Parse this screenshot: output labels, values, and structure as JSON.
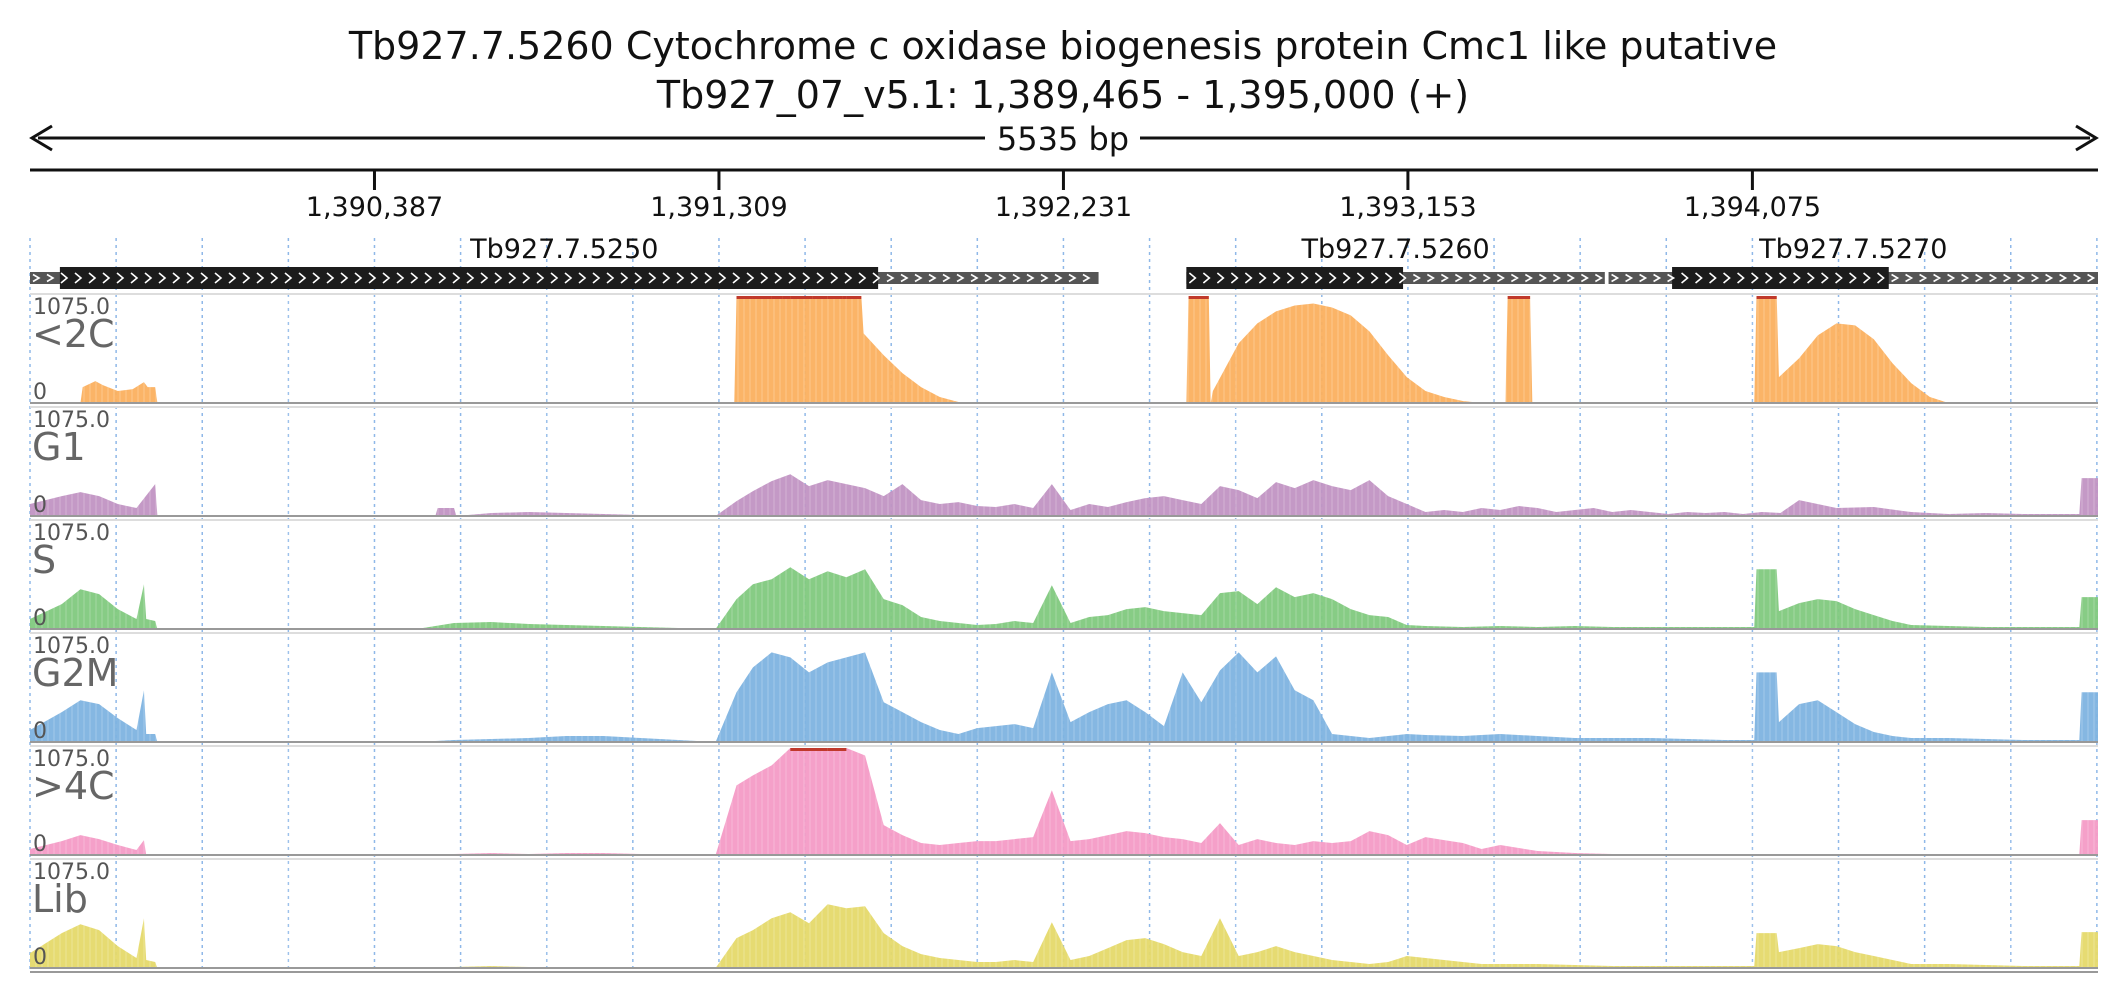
{
  "title": "Tb927.7.5260  Cytochrome c oxidase biogenesis protein Cmc1 like  putative",
  "subtitle": "Tb927_07_v5.1: 1,389,465 - 1,395,000 (+)",
  "span_label": "5535 bp",
  "chart_data": {
    "type": "area",
    "region": {
      "chromosome": "Tb927_07_v5.1",
      "start": 1389465,
      "end": 1395000,
      "strand": "+"
    },
    "ticks": [
      {
        "pos": 1390387,
        "label": "1,390,387"
      },
      {
        "pos": 1391309,
        "label": "1,391,309"
      },
      {
        "pos": 1392231,
        "label": "1,392,231"
      },
      {
        "pos": 1393153,
        "label": "1,393,153"
      },
      {
        "pos": 1394075,
        "label": "1,394,075"
      }
    ],
    "genes": [
      {
        "name": "Tb927.7.5250",
        "start": 1389465,
        "end": 1392325,
        "cds_start": 1389545,
        "cds_end": 1391735
      },
      {
        "name": "Tb927.7.5260",
        "start": 1392560,
        "end": 1393680,
        "cds_start": 1392560,
        "cds_end": 1393140
      },
      {
        "name": "Tb927.7.5270",
        "start": 1393690,
        "end": 1395000,
        "cds_start": 1393860,
        "cds_end": 1394440
      }
    ],
    "max_value": "1075.0",
    "min_value": "0",
    "ylim": [
      0,
      1075
    ],
    "grid": true,
    "series": [
      {
        "name": "<2C",
        "color": "#fbb05f",
        "x": [
          1389465,
          1389600,
          1389606,
          1389640,
          1389660,
          1389700,
          1389740,
          1389770,
          1389780,
          1389800,
          1389806,
          1391350,
          1391356,
          1391400,
          1391450,
          1391480,
          1391500,
          1391560,
          1391600,
          1391640,
          1391650,
          1391690,
          1391696,
          1391750,
          1391800,
          1391850,
          1391900,
          1391950,
          1392000,
          1392050,
          1392100,
          1392150,
          1392200,
          1392250,
          1392300,
          1392350,
          1392400,
          1392450,
          1392500,
          1392550,
          1392560,
          1392566,
          1392620,
          1392625,
          1392631,
          1392700,
          1392750,
          1392800,
          1392850,
          1392900,
          1392950,
          1393000,
          1393050,
          1393100,
          1393150,
          1393200,
          1393250,
          1393300,
          1393350,
          1393400,
          1393414,
          1393420,
          1393480,
          1393486,
          1393840,
          1394080,
          1394086,
          1394140,
          1394146,
          1394200,
          1394250,
          1394300,
          1394350,
          1394400,
          1394450,
          1394500,
          1394550,
          1394600,
          1394650,
          1394700,
          1394750,
          1394800,
          1394850,
          1394900,
          1394950,
          1395000
        ],
        "values": [
          0,
          0,
          160,
          220,
          180,
          120,
          140,
          210,
          160,
          160,
          0,
          0,
          1075,
          1075,
          1075,
          1075,
          1075,
          1075,
          1075,
          1075,
          1075,
          1075,
          700,
          480,
          300,
          160,
          60,
          10,
          0,
          0,
          0,
          0,
          0,
          0,
          0,
          0,
          0,
          0,
          0,
          0,
          0,
          1075,
          1075,
          0,
          120,
          600,
          800,
          920,
          980,
          1000,
          960,
          880,
          720,
          480,
          260,
          120,
          60,
          20,
          0,
          0,
          0,
          1075,
          1075,
          0,
          0,
          0,
          1075,
          1075,
          260,
          450,
          680,
          800,
          780,
          640,
          400,
          200,
          60,
          0,
          0,
          0,
          0,
          0,
          0,
          0,
          0,
          0
        ]
      },
      {
        "name": "G1",
        "color": "#c194c3",
        "x": [
          1389465,
          1389550,
          1389600,
          1389650,
          1389700,
          1389750,
          1389800,
          1389806,
          1390550,
          1390556,
          1390600,
          1390606,
          1390700,
          1390800,
          1390900,
          1391000,
          1391100,
          1391200,
          1391300,
          1391356,
          1391400,
          1391450,
          1391500,
          1391550,
          1391600,
          1391650,
          1391700,
          1391750,
          1391800,
          1391850,
          1391900,
          1391950,
          1392000,
          1392050,
          1392100,
          1392150,
          1392200,
          1392250,
          1392300,
          1392350,
          1392400,
          1392450,
          1392500,
          1392550,
          1392600,
          1392650,
          1392700,
          1392750,
          1392800,
          1392850,
          1392900,
          1392950,
          1393000,
          1393050,
          1393100,
          1393150,
          1393200,
          1393250,
          1393300,
          1393350,
          1393400,
          1393450,
          1393500,
          1393550,
          1393600,
          1393650,
          1393700,
          1393750,
          1393800,
          1393850,
          1393900,
          1393950,
          1394000,
          1394050,
          1394100,
          1394150,
          1394200,
          1394300,
          1394400,
          1394500,
          1394600,
          1394700,
          1394800,
          1394900,
          1394950,
          1394956,
          1395000
        ],
        "values": [
          120,
          200,
          240,
          200,
          120,
          80,
          320,
          0,
          0,
          80,
          80,
          0,
          30,
          40,
          30,
          20,
          10,
          10,
          0,
          150,
          250,
          350,
          420,
          300,
          360,
          320,
          280,
          200,
          320,
          160,
          120,
          140,
          100,
          90,
          120,
          80,
          320,
          60,
          120,
          90,
          140,
          180,
          200,
          160,
          120,
          300,
          260,
          180,
          340,
          280,
          360,
          300,
          260,
          360,
          200,
          120,
          40,
          60,
          40,
          80,
          60,
          100,
          80,
          40,
          60,
          80,
          40,
          60,
          40,
          20,
          40,
          30,
          40,
          20,
          40,
          30,
          160,
          80,
          90,
          40,
          20,
          30,
          20,
          20,
          20,
          380,
          380
        ]
      },
      {
        "name": "S",
        "color": "#81c97e",
        "x": [
          1389465,
          1389550,
          1389600,
          1389650,
          1389700,
          1389750,
          1389770,
          1389776,
          1389800,
          1389806,
          1390500,
          1390600,
          1390700,
          1390800,
          1390900,
          1391000,
          1391100,
          1391200,
          1391300,
          1391356,
          1391400,
          1391450,
          1391500,
          1391550,
          1391600,
          1391650,
          1391700,
          1391750,
          1391800,
          1391850,
          1391900,
          1391950,
          1392000,
          1392050,
          1392100,
          1392150,
          1392200,
          1392250,
          1392300,
          1392350,
          1392400,
          1392450,
          1392500,
          1392550,
          1392600,
          1392650,
          1392700,
          1392750,
          1392800,
          1392850,
          1392900,
          1392950,
          1393000,
          1393050,
          1393100,
          1393150,
          1393200,
          1393300,
          1393400,
          1393500,
          1393600,
          1393700,
          1393800,
          1393900,
          1394000,
          1394080,
          1394086,
          1394140,
          1394146,
          1394200,
          1394250,
          1394300,
          1394350,
          1394400,
          1394450,
          1394500,
          1394600,
          1394700,
          1394800,
          1394900,
          1394950,
          1394956,
          1395000
        ],
        "values": [
          100,
          250,
          400,
          350,
          200,
          100,
          450,
          100,
          80,
          0,
          0,
          60,
          70,
          50,
          40,
          30,
          20,
          10,
          0,
          300,
          450,
          500,
          620,
          500,
          580,
          520,
          600,
          300,
          240,
          120,
          80,
          60,
          40,
          50,
          80,
          60,
          440,
          60,
          120,
          140,
          200,
          220,
          180,
          160,
          140,
          360,
          380,
          250,
          420,
          320,
          360,
          300,
          200,
          140,
          120,
          40,
          30,
          20,
          30,
          20,
          30,
          20,
          20,
          20,
          20,
          20,
          600,
          600,
          180,
          260,
          300,
          280,
          200,
          140,
          80,
          40,
          30,
          20,
          20,
          20,
          20,
          320,
          320
        ]
      },
      {
        "name": "G2M",
        "color": "#7eb3e0",
        "x": [
          1389465,
          1389550,
          1389600,
          1389650,
          1389700,
          1389750,
          1389770,
          1389776,
          1389800,
          1389806,
          1390500,
          1390600,
          1390700,
          1390800,
          1390900,
          1391000,
          1391100,
          1391200,
          1391300,
          1391356,
          1391400,
          1391450,
          1391500,
          1391550,
          1391600,
          1391650,
          1391700,
          1391750,
          1391800,
          1391850,
          1391900,
          1391950,
          1392000,
          1392050,
          1392100,
          1392150,
          1392200,
          1392250,
          1392300,
          1392350,
          1392400,
          1392450,
          1392500,
          1392550,
          1392600,
          1392650,
          1392700,
          1392750,
          1392800,
          1392850,
          1392900,
          1392950,
          1393000,
          1393050,
          1393100,
          1393150,
          1393200,
          1393300,
          1393400,
          1393500,
          1393600,
          1393700,
          1393800,
          1393900,
          1394000,
          1394080,
          1394086,
          1394140,
          1394146,
          1394200,
          1394250,
          1394300,
          1394350,
          1394400,
          1394450,
          1394500,
          1394600,
          1394700,
          1394800,
          1394900,
          1394950,
          1394956,
          1395000
        ],
        "values": [
          120,
          300,
          420,
          380,
          240,
          120,
          520,
          80,
          80,
          0,
          0,
          20,
          30,
          40,
          60,
          60,
          40,
          20,
          0,
          500,
          750,
          900,
          850,
          700,
          800,
          850,
          900,
          400,
          300,
          200,
          120,
          80,
          140,
          160,
          180,
          140,
          700,
          200,
          300,
          380,
          420,
          300,
          160,
          700,
          400,
          720,
          900,
          700,
          860,
          520,
          420,
          80,
          60,
          40,
          60,
          80,
          70,
          60,
          80,
          60,
          40,
          40,
          40,
          30,
          20,
          20,
          700,
          700,
          200,
          380,
          420,
          300,
          180,
          100,
          60,
          40,
          40,
          30,
          20,
          20,
          20,
          500,
          500
        ]
      },
      {
        "name": ">4C",
        "color": "#f49bc6",
        "x": [
          1389465,
          1389550,
          1389600,
          1389650,
          1389700,
          1389750,
          1389770,
          1389776,
          1389800,
          1389806,
          1390500,
          1390600,
          1390700,
          1390800,
          1390900,
          1391000,
          1391100,
          1391200,
          1391300,
          1391356,
          1391400,
          1391450,
          1391500,
          1391550,
          1391600,
          1391650,
          1391700,
          1391750,
          1391800,
          1391850,
          1391900,
          1391950,
          1392000,
          1392050,
          1392100,
          1392150,
          1392200,
          1392250,
          1392300,
          1392350,
          1392400,
          1392450,
          1392500,
          1392550,
          1392600,
          1392650,
          1392700,
          1392750,
          1392800,
          1392850,
          1392900,
          1392950,
          1393000,
          1393050,
          1393100,
          1393150,
          1393200,
          1393250,
          1393300,
          1393350,
          1393400,
          1393500,
          1393600,
          1393700,
          1393800,
          1393900,
          1394000,
          1394100,
          1394200,
          1394300,
          1394400,
          1394500,
          1394600,
          1394700,
          1394800,
          1394900,
          1394950,
          1394956,
          1395000
        ],
        "values": [
          60,
          140,
          200,
          160,
          100,
          50,
          150,
          0,
          0,
          0,
          0,
          10,
          20,
          10,
          20,
          20,
          10,
          0,
          0,
          700,
          800,
          900,
          1075,
          1075,
          1075,
          1075,
          1000,
          300,
          200,
          120,
          100,
          120,
          140,
          140,
          160,
          180,
          650,
          140,
          160,
          200,
          240,
          220,
          180,
          160,
          120,
          320,
          100,
          160,
          120,
          100,
          140,
          120,
          140,
          240,
          200,
          100,
          180,
          150,
          120,
          60,
          100,
          40,
          20,
          10,
          10,
          10,
          10,
          10,
          10,
          10,
          10,
          10,
          10,
          10,
          10,
          10,
          10,
          350,
          350
        ]
      },
      {
        "name": "Lib",
        "color": "#e5d96a",
        "x": [
          1389465,
          1389550,
          1389600,
          1389650,
          1389700,
          1389750,
          1389770,
          1389776,
          1389800,
          1389806,
          1390500,
          1390600,
          1390700,
          1390800,
          1390900,
          1391000,
          1391100,
          1391200,
          1391300,
          1391356,
          1391400,
          1391450,
          1391500,
          1391550,
          1391600,
          1391650,
          1391700,
          1391750,
          1391800,
          1391850,
          1391900,
          1391950,
          1392000,
          1392050,
          1392100,
          1392150,
          1392200,
          1392250,
          1392300,
          1392350,
          1392400,
          1392450,
          1392500,
          1392550,
          1392600,
          1392650,
          1392700,
          1392750,
          1392800,
          1392850,
          1392900,
          1392950,
          1393000,
          1393050,
          1393100,
          1393150,
          1393200,
          1393250,
          1393300,
          1393350,
          1393400,
          1393500,
          1393600,
          1393700,
          1393800,
          1393900,
          1394000,
          1394080,
          1394086,
          1394140,
          1394146,
          1394200,
          1394250,
          1394300,
          1394350,
          1394400,
          1394450,
          1394500,
          1394600,
          1394700,
          1394800,
          1394900,
          1394950,
          1394956,
          1395000
        ],
        "values": [
          150,
          350,
          440,
          380,
          220,
          100,
          500,
          80,
          60,
          0,
          0,
          10,
          20,
          10,
          10,
          10,
          10,
          10,
          0,
          300,
          380,
          500,
          560,
          450,
          640,
          600,
          620,
          350,
          220,
          140,
          100,
          80,
          60,
          60,
          80,
          60,
          460,
          80,
          120,
          200,
          280,
          300,
          240,
          160,
          120,
          500,
          120,
          160,
          220,
          160,
          120,
          80,
          60,
          40,
          60,
          120,
          100,
          80,
          60,
          40,
          40,
          40,
          30,
          20,
          20,
          20,
          20,
          20,
          350,
          350,
          160,
          200,
          240,
          220,
          160,
          120,
          80,
          40,
          40,
          30,
          20,
          20,
          20,
          360,
          360
        ]
      }
    ]
  }
}
